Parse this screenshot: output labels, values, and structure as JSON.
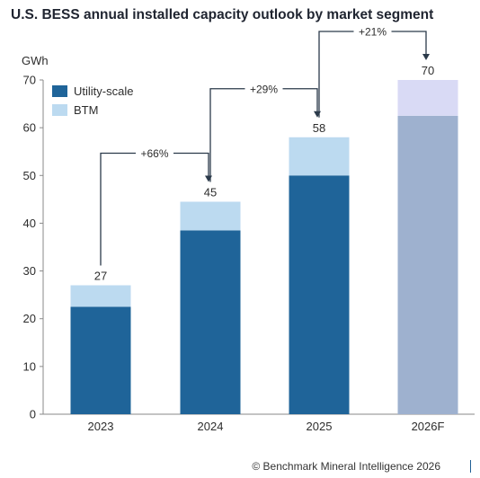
{
  "title": "U.S. BESS annual installed capacity outlook by market segment",
  "footer": "© Benchmark Mineral Intelligence 2026",
  "chart_data": {
    "type": "bar",
    "stacked": true,
    "title": "U.S. BESS annual installed capacity outlook by market segment",
    "ylabel": "GWh",
    "xlabel": "",
    "ylim": [
      0,
      70
    ],
    "yticks": [
      0,
      10,
      20,
      30,
      40,
      50,
      60,
      70
    ],
    "grid": false,
    "legend_position": "top-left",
    "categories": [
      "2023",
      "2024",
      "2025",
      "2026F"
    ],
    "series": [
      {
        "name": "Utility-scale",
        "values": [
          22.5,
          38.5,
          50,
          62.5
        ],
        "color": "#1f6499",
        "forecast_color": "#9eb1cf"
      },
      {
        "name": "BTM",
        "values": [
          4.5,
          6,
          8,
          7.5
        ],
        "color": "#bcdaf0",
        "forecast_color": "#d9daf5"
      }
    ],
    "totals": [
      "27",
      "45",
      "58",
      "70"
    ],
    "forecast_index": 3,
    "growth_annotations": [
      {
        "from": 0,
        "to": 1,
        "label": "+66%"
      },
      {
        "from": 1,
        "to": 2,
        "label": "+29%"
      },
      {
        "from": 2,
        "to": 3,
        "label": "+21%"
      }
    ],
    "annotation_color": "#2b3a4a"
  }
}
